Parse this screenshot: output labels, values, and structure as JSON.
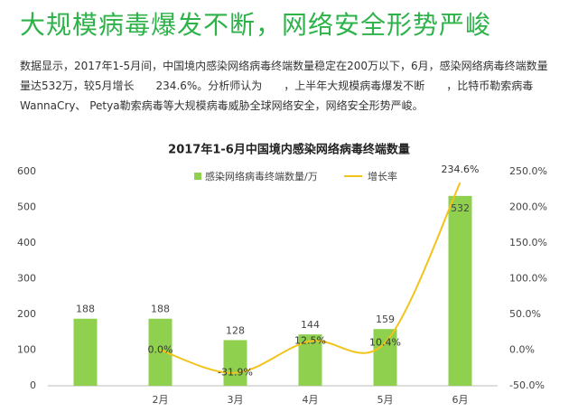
{
  "header": {
    "title": "大规模病毒爆发不断，网络安全形势严峻"
  },
  "paragraph": {
    "lines": [
      "数据显示，2017年1-5月间，中国境内感染网络病毒终端数量稳定在200万以下，6月，感染网络病毒终端数量",
      "量达532万，较5月增长　　234.6%。分析师认为　　，上半年大规模病毒爆发不断　　，比特币勒索病毒",
      "WannaCry、 Petya勒索病毒等大规模病毒威胁全球网络安全，网络安全形势严峻。"
    ]
  },
  "chart_data": {
    "type": "bar-line",
    "title": "2017年1-6月中国境内感染网络病毒终端数量",
    "categories": [
      null,
      "2月",
      "3月",
      "4月",
      "5月",
      "6月"
    ],
    "series": [
      {
        "name": "感染网络病毒终端数量/万",
        "type": "bar",
        "color": "#8fd14f",
        "values": [
          188,
          188,
          128,
          144,
          159,
          532
        ]
      },
      {
        "name": "增长率",
        "type": "line",
        "axis": "y2",
        "color": "#f2c31a",
        "values": [
          null,
          0.0,
          -31.9,
          12.5,
          10.4,
          234.6
        ],
        "value_labels": [
          null,
          "0.0%",
          "-31.9%",
          "12.5%",
          "10.4%",
          "234.6%"
        ]
      }
    ],
    "ylim": [
      0,
      600
    ],
    "yticks": [
      0,
      100,
      200,
      300,
      400,
      500,
      600
    ],
    "y2lim": [
      -50,
      250
    ],
    "y2ticks": [
      {
        "value": -50,
        "label": "-50.0%"
      },
      {
        "value": 0,
        "label": "0.0%"
      },
      {
        "value": 50,
        "label": "50.0%"
      },
      {
        "value": 100,
        "label": "100.0%"
      },
      {
        "value": 150,
        "label": "150.0%"
      },
      {
        "value": 200,
        "label": "200.0%"
      },
      {
        "value": 250,
        "label": "250.0%"
      }
    ],
    "legend": "top"
  }
}
